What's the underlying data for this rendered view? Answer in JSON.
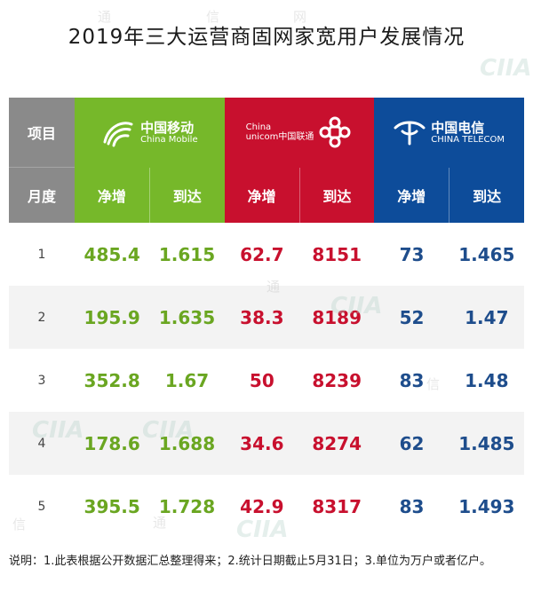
{
  "title": "2019年三大运营商固网家宽用户发展情况",
  "header": {
    "item_label": "项目",
    "month_label": "月度",
    "net_add_label": "净增",
    "reach_label": "到达"
  },
  "operators": [
    {
      "cn": "中国移动",
      "en": "China Mobile",
      "color": "#76b82a"
    },
    {
      "cn_line1": "China",
      "cn_line2": "unicom中国联通",
      "color": "#c8102e"
    },
    {
      "cn": "中国电信",
      "en": "CHINA TELECOM",
      "color": "#0d4c9a"
    }
  ],
  "rows": [
    {
      "month": "1",
      "cm_net": "485.4",
      "cm_reach": "1.615",
      "cu_net": "62.7",
      "cu_reach": "8151",
      "ct_net": "73",
      "ct_reach": "1.465"
    },
    {
      "month": "2",
      "cm_net": "195.9",
      "cm_reach": "1.635",
      "cu_net": "38.3",
      "cu_reach": "8189",
      "ct_net": "52",
      "ct_reach": "1.47"
    },
    {
      "month": "3",
      "cm_net": "352.8",
      "cm_reach": "1.67",
      "cu_net": "50",
      "cu_reach": "8239",
      "ct_net": "83",
      "ct_reach": "1.48"
    },
    {
      "month": "4",
      "cm_net": "178.6",
      "cm_reach": "1.688",
      "cu_net": "34.6",
      "cu_reach": "8274",
      "ct_net": "62",
      "ct_reach": "1.485"
    },
    {
      "month": "5",
      "cm_net": "395.5",
      "cm_reach": "1.728",
      "cu_net": "42.9",
      "cu_reach": "8317",
      "ct_net": "83",
      "ct_reach": "1.493"
    }
  ],
  "note": "说明：1.此表根据公开数据汇总整理得来；2.统计日期截止5月31日；3.单位为万户或者亿户。",
  "watermark": {
    "chars": [
      "通",
      "信",
      "网"
    ],
    "logo": "CIIA"
  }
}
